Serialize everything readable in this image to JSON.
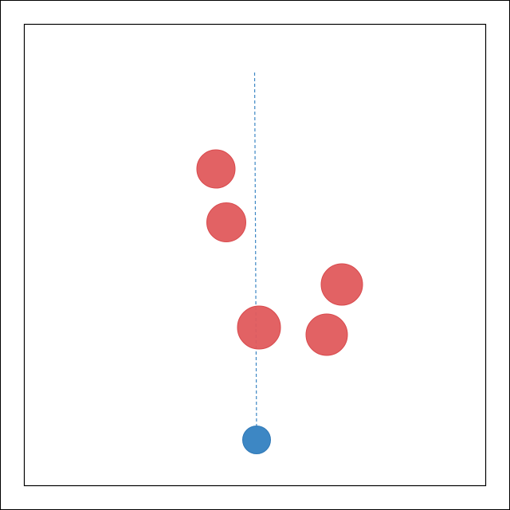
{
  "colors": {
    "background": "#ffffff",
    "frame": "#000000",
    "obstacle_fill": "#e05a5c",
    "obstacle_stroke": "#d94a4d",
    "player_fill": "#3d87c4",
    "player_stroke": "#2f78b6",
    "aim_line": "#3d87c4"
  },
  "scene": {
    "player": {
      "label": "player-ball"
    },
    "aim": {
      "style": "dashed",
      "direction": "up"
    },
    "obstacle_count": 5
  }
}
